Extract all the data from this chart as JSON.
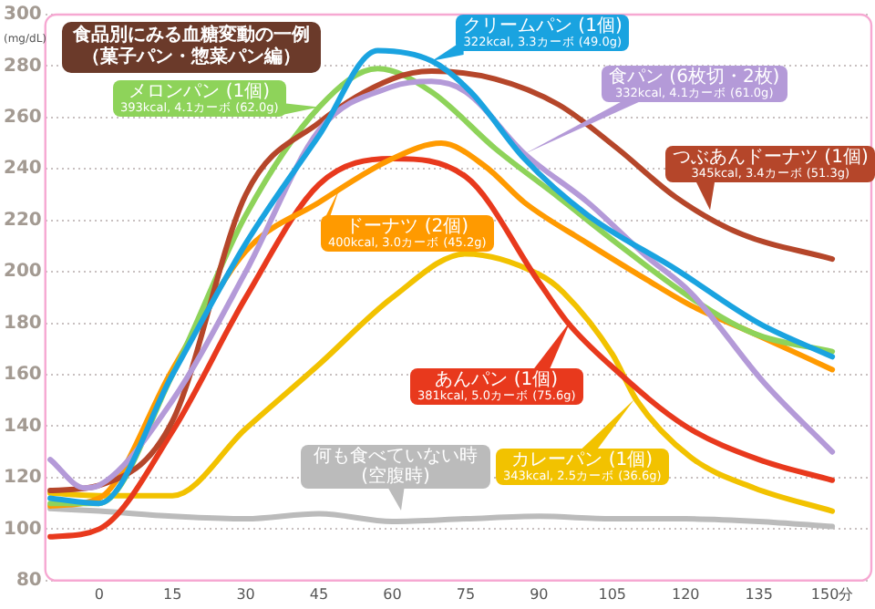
{
  "chart_data": {
    "type": "line",
    "title": "食品別にみる血糖変動の一例",
    "subtitle": "（菓子パン・惣菜パン編）",
    "ylabel": "(mg/dL)",
    "xlim": [
      -11,
      158
    ],
    "xticks": [
      0,
      15,
      30,
      45,
      60,
      75,
      90,
      105,
      120,
      135,
      {
        "value": 150,
        "label": "150分"
      }
    ],
    "ylim": [
      80,
      300
    ],
    "yticks": [
      80,
      100,
      120,
      140,
      160,
      180,
      200,
      220,
      240,
      260,
      280,
      300
    ],
    "grid": "y",
    "legend": false,
    "marker": "none",
    "line_style": "solid",
    "series": [
      {
        "name": "クリームパン (1個)",
        "color": "#1aa3e0",
        "x": [
          -10,
          0,
          15,
          30,
          45,
          57,
          68,
          76,
          87,
          100,
          118,
          135,
          150
        ],
        "values": [
          112,
          110,
          160,
          211,
          253,
          286,
          282,
          270,
          244,
          222,
          201,
          180,
          167
        ]
      },
      {
        "name": "食パン (6枚切・2枚)",
        "color": "#b49ad8",
        "x": [
          -10,
          -3,
          0,
          15,
          30,
          45,
          60,
          68,
          75,
          87,
          100,
          112,
          121,
          136,
          150
        ],
        "values": [
          127,
          116,
          117,
          150,
          200,
          255,
          272,
          274,
          270,
          246,
          227,
          206,
          192,
          157,
          130
        ]
      },
      {
        "name": "つぶあんドーナツ (1個)",
        "color": "#b5462a",
        "x": [
          -10,
          0,
          15,
          30,
          45,
          60,
          68,
          81,
          94,
          106,
          118,
          131,
          150
        ],
        "values": [
          115,
          117,
          142,
          230,
          258,
          275,
          278,
          275,
          265,
          248,
          229,
          215,
          205
        ]
      },
      {
        "name": "メロンパン (1個)",
        "color": "#8ed35a",
        "x": [
          -10,
          0,
          15,
          30,
          45,
          57,
          68,
          81,
          94,
          106,
          121,
          134,
          150
        ],
        "values": [
          110,
          110,
          160,
          222,
          264,
          279,
          270,
          248,
          229,
          211,
          190,
          176,
          169
        ]
      },
      {
        "name": "ドーナツ (2個)",
        "color": "#ff9a00",
        "x": [
          -10,
          0,
          15,
          30,
          45,
          60,
          70,
          79,
          87,
          100,
          112,
          121,
          134,
          150
        ],
        "values": [
          109,
          112,
          162,
          208,
          227,
          244,
          250,
          241,
          227,
          211,
          197,
          187,
          176,
          162
        ]
      },
      {
        "name": "あんパン (1個)",
        "color": "#e8391d",
        "x": [
          -10,
          0,
          15,
          30,
          45,
          60,
          75,
          90,
          96,
          105,
          120,
          135,
          150
        ],
        "values": [
          97,
          100,
          138,
          190,
          234,
          244,
          237,
          196,
          180,
          163,
          140,
          127,
          119
        ]
      },
      {
        "name": "カレーパン (1個)",
        "color": "#f2c200",
        "x": [
          -10,
          0,
          15,
          30,
          45,
          60,
          75,
          90,
          95,
          105,
          110,
          121,
          134,
          150
        ],
        "values": [
          114,
          113,
          113,
          139,
          164,
          190,
          207,
          199,
          192,
          168,
          150,
          128,
          116,
          107
        ]
      },
      {
        "name": "何も食べていない時 (空腹時)",
        "color": "#bbbbbb",
        "x": [
          -10,
          0,
          15,
          30,
          45,
          60,
          75,
          90,
          105,
          120,
          135,
          150
        ],
        "values": [
          108,
          107,
          105,
          104,
          106,
          103,
          104,
          105,
          104,
          104,
          103,
          101
        ]
      }
    ],
    "annotations": [
      {
        "text": "322kcal, 3.3カーボ (49.0g)",
        "x": 68,
        "y": 282
      },
      {
        "text": "332kcal, 4.1カーボ (61.0g)",
        "x": 87,
        "y": 246
      },
      {
        "text": "345kcal, 3.4カーボ (51.3g)",
        "x": 125,
        "y": 224
      },
      {
        "text": "393kcal, 4.1カーボ (62.0g)",
        "x": 45,
        "y": 264
      },
      "400kcal, 3.0カーボ (45.2g)",
      "381kcal, 5.0カーボ (75.6g)",
      "343kcal, 2.5カーボ (36.6g)"
    ]
  }
}
